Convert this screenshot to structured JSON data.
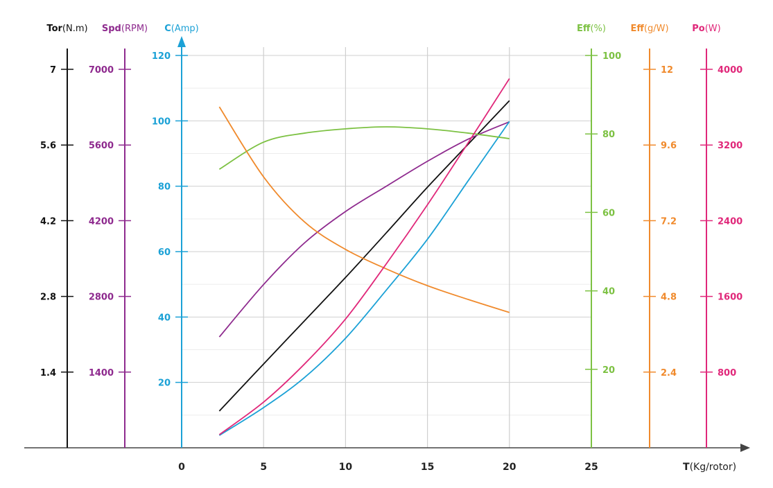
{
  "chart_data": {
    "type": "line",
    "xlabel": {
      "bold": "T",
      "rest": "(Kg/rotor)"
    },
    "xlim": [
      0,
      25
    ],
    "xticks": [
      0,
      5,
      10,
      15,
      20,
      25
    ],
    "grid": true,
    "axes": [
      {
        "id": "tor",
        "bold": "Tor",
        "rest": "(N.m)",
        "color": "#111111",
        "min": 0,
        "max": 7,
        "ticks": [
          "1.4",
          "2.8",
          "4.2",
          "5.6",
          "7"
        ],
        "side": "left"
      },
      {
        "id": "spd",
        "bold": "Spd",
        "rest": "(RPM)",
        "color": "#8e2a8e",
        "min": 0,
        "max": 7000,
        "ticks": [
          "1400",
          "2800",
          "4200",
          "5600",
          "7000"
        ],
        "side": "left"
      },
      {
        "id": "c",
        "bold": "C",
        "rest": "(Amp)",
        "color": "#1ba1d6",
        "min": 0,
        "max": 120,
        "ticks": [
          "20",
          "40",
          "60",
          "80",
          "100",
          "120"
        ],
        "side": "left"
      },
      {
        "id": "effp",
        "bold": "Eff",
        "rest": "(%)",
        "color": "#7cc142",
        "min": 0,
        "max": 100,
        "ticks": [
          "20",
          "40",
          "60",
          "80",
          "100"
        ],
        "side": "right"
      },
      {
        "id": "effg",
        "bold": "Eff",
        "rest": "(g/W)",
        "color": "#f08a2c",
        "min": 0,
        "max": 12,
        "ticks": [
          "2.4",
          "4.8",
          "7.2",
          "9.6",
          "12"
        ],
        "side": "right"
      },
      {
        "id": "po",
        "bold": "Po",
        "rest": "(W)",
        "color": "#e0287a",
        "min": 0,
        "max": 4000,
        "ticks": [
          "800",
          "1600",
          "2400",
          "3200",
          "4000"
        ],
        "side": "right"
      }
    ],
    "x": [
      2.3,
      5,
      7.5,
      10,
      12.5,
      15,
      17.5,
      20
    ],
    "series": [
      {
        "name": "Torque",
        "axis": "tor",
        "values": [
          0.68,
          1.55,
          2.35,
          3.15,
          3.98,
          4.82,
          5.62,
          6.42
        ]
      },
      {
        "name": "Speed",
        "axis": "spd",
        "values": [
          2050,
          3020,
          3790,
          4370,
          4840,
          5300,
          5710,
          6030
        ]
      },
      {
        "name": "Current",
        "axis": "c",
        "values": [
          3.8,
          12.3,
          21.5,
          33.5,
          48.3,
          63.8,
          81.8,
          99.8
        ]
      },
      {
        "name": "Efficiency %",
        "axis": "effp",
        "values": [
          71.0,
          77.9,
          80.2,
          81.3,
          81.8,
          81.3,
          80.2,
          78.8
        ]
      },
      {
        "name": "Efficiency g/W",
        "axis": "effg",
        "values": [
          10.81,
          8.59,
          7.16,
          6.29,
          5.67,
          5.14,
          4.7,
          4.29
        ]
      },
      {
        "name": "Power",
        "axis": "po",
        "values": [
          139,
          483,
          886,
          1361,
          1947,
          2569,
          3228,
          3902
        ]
      }
    ]
  }
}
